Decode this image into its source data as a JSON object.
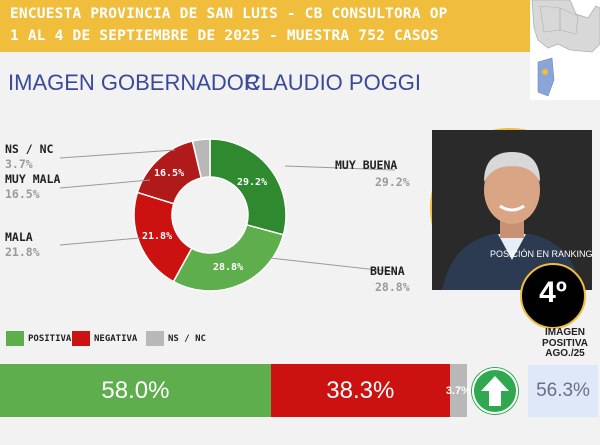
{
  "header": {
    "line1": "ENCUESTA PROVINCIA DE SAN LUIS - CB CONSULTORA OP",
    "line2": "1 AL 4 DE SEPTIEMBRE DE 2025 - MUESTRA 752 CASOS"
  },
  "subtitle": {
    "left": "IMAGEN GOBERNADOR",
    "right": "CLAUDIO POGGI"
  },
  "ranking": {
    "label": "POSICIÓN EN RANKING",
    "value": "4º"
  },
  "legend": {
    "positiva": "POSITIVA",
    "negativa": "NEGATIVA",
    "nsnc": "NS / NC"
  },
  "previous": {
    "label_line1": "IMAGEN",
    "label_line2": "POSITIVA",
    "label_line3": "AGO./25",
    "value": "56.3%"
  },
  "colors": {
    "header": "#f0bd3c",
    "muy_buena": "#2f8a2f",
    "buena": "#5fae4d",
    "mala": "#cc1111",
    "muy_mala": "#b01a1a",
    "nsnc": "#b8b8b8",
    "positiva": "#5fae4d",
    "negativa": "#cc1111",
    "subtitle": "#3a4a9a"
  },
  "icons": {
    "map": "argentina-map-icon",
    "arrow": "arrow-up-icon",
    "portrait": "governor-portrait"
  },
  "chart_data": [
    {
      "type": "pie",
      "variant": "donut",
      "categories": [
        "MUY BUENA",
        "BUENA",
        "MALA",
        "MUY MALA",
        "NS / NC"
      ],
      "values": [
        29.2,
        28.8,
        21.8,
        16.5,
        3.7
      ],
      "labels": [
        "29.2%",
        "28.8%",
        "21.8%",
        "16.5%",
        "3.7%"
      ],
      "colors": [
        "#2f8a2f",
        "#5fae4d",
        "#cc1111",
        "#b01a1a",
        "#b8b8b8"
      ]
    },
    {
      "type": "bar",
      "variant": "stacked-horizontal",
      "categories": [
        "POSITIVA",
        "NEGATIVA",
        "NS / NC"
      ],
      "values": [
        58.0,
        38.3,
        3.7
      ],
      "labels": [
        "58.0%",
        "38.3%",
        "3.7%"
      ],
      "colors": [
        "#5fae4d",
        "#cc1111",
        "#b8b8b8"
      ]
    }
  ]
}
